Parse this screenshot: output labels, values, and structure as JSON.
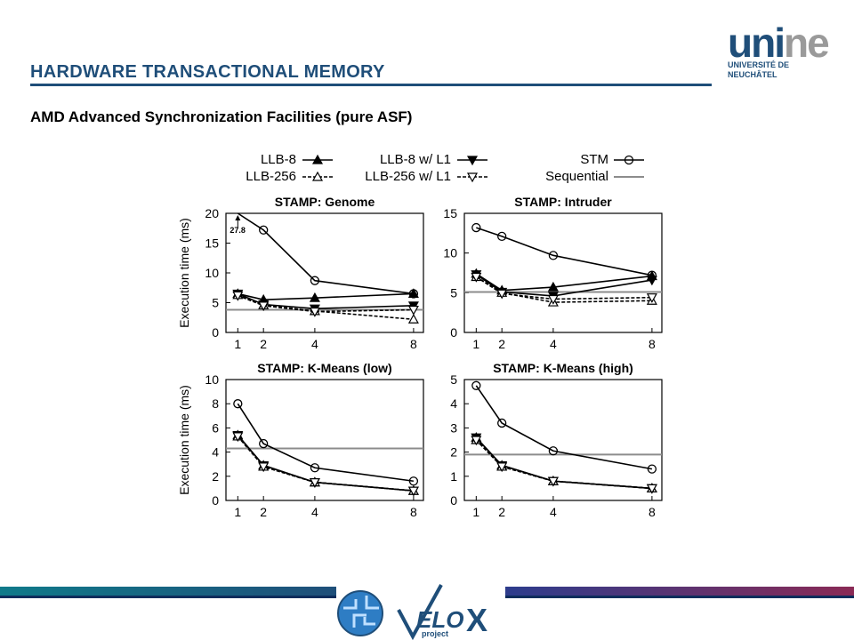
{
  "slide": {
    "title": "HARDWARE TRANSACTIONAL MEMORY",
    "subtitle": "AMD Advanced Synchronization Facilities (pure ASF)",
    "logo": {
      "word_dark": "uni",
      "word_light": "ne",
      "line1": "UNIVERSITÉ DE",
      "line2": "NEUCHÂTEL"
    },
    "footer_logo": {
      "word": "VELOX",
      "small": "project",
      "letter_v": "V",
      "letter_elo": "ELO",
      "letter_x": "X"
    }
  },
  "legend": [
    {
      "name": "LLB-8",
      "marker": "tri-up-filled",
      "dash": false
    },
    {
      "name": "LLB-256",
      "marker": "tri-up-open",
      "dash": true
    },
    {
      "name": "LLB-8 w/ L1",
      "marker": "tri-down-filled",
      "dash": false
    },
    {
      "name": "LLB-256 w/ L1",
      "marker": "tri-down-open",
      "dash": true
    },
    {
      "name": "STM",
      "marker": "circle-open",
      "dash": false
    },
    {
      "name": "Sequential",
      "marker": "none",
      "dash": false,
      "color": "#8c8c8c"
    }
  ],
  "chart_data": [
    {
      "type": "line",
      "title": "STAMP: Genome",
      "ylabel": "Execution time (ms)",
      "x": [
        1,
        2,
        4,
        8
      ],
      "xticks": [
        "1",
        "2",
        "4",
        "8"
      ],
      "ylim": [
        0,
        20
      ],
      "yticks": [
        "0",
        "5",
        "10",
        "15",
        "20"
      ],
      "annotation": "27.8",
      "sequential": 3.8,
      "series": [
        {
          "name": "LLB-8",
          "values": [
            6.5,
            5.5,
            5.8,
            6.5
          ]
        },
        {
          "name": "LLB-256",
          "values": [
            6.3,
            4.6,
            3.6,
            2.2
          ]
        },
        {
          "name": "LLB-8 w/ L1",
          "values": [
            6.5,
            4.7,
            4.0,
            4.5
          ]
        },
        {
          "name": "LLB-256 w/ L1",
          "values": [
            6.2,
            4.5,
            3.5,
            3.8
          ]
        },
        {
          "name": "STM",
          "values": [
            27.8,
            17.2,
            8.7,
            6.5
          ]
        }
      ]
    },
    {
      "type": "line",
      "title": "STAMP: Intruder",
      "ylabel": "",
      "x": [
        1,
        2,
        4,
        8
      ],
      "xticks": [
        "1",
        "2",
        "4",
        "8"
      ],
      "ylim": [
        0,
        15
      ],
      "yticks": [
        "0",
        "5",
        "10",
        "15"
      ],
      "sequential": 5.1,
      "series": [
        {
          "name": "LLB-8",
          "values": [
            7.4,
            5.3,
            5.7,
            7.1
          ]
        },
        {
          "name": "LLB-256",
          "values": [
            7.0,
            5.0,
            3.8,
            4.0
          ]
        },
        {
          "name": "LLB-8 w/ L1",
          "values": [
            7.3,
            5.1,
            4.6,
            6.6
          ]
        },
        {
          "name": "LLB-256 w/ L1",
          "values": [
            7.0,
            4.9,
            4.2,
            4.4
          ]
        },
        {
          "name": "STM",
          "values": [
            13.2,
            12.1,
            9.7,
            7.2
          ]
        }
      ]
    },
    {
      "type": "line",
      "title": "STAMP: K-Means (low)",
      "ylabel": "Execution time (ms)",
      "x": [
        1,
        2,
        4,
        8
      ],
      "xticks": [
        "1",
        "2",
        "4",
        "8"
      ],
      "ylim": [
        0,
        10
      ],
      "yticks": [
        "0",
        "2",
        "4",
        "6",
        "8",
        "10"
      ],
      "sequential": 4.3,
      "series": [
        {
          "name": "LLB-8",
          "values": [
            5.4,
            2.9,
            1.5,
            0.8
          ]
        },
        {
          "name": "LLB-256",
          "values": [
            5.3,
            2.8,
            1.5,
            0.8
          ]
        },
        {
          "name": "LLB-8 w/ L1",
          "values": [
            5.4,
            2.9,
            1.5,
            0.8
          ]
        },
        {
          "name": "LLB-256 w/ L1",
          "values": [
            5.3,
            2.8,
            1.5,
            0.8
          ]
        },
        {
          "name": "STM",
          "values": [
            8.0,
            4.7,
            2.7,
            1.6
          ]
        }
      ]
    },
    {
      "type": "line",
      "title": "STAMP: K-Means (high)",
      "ylabel": "",
      "x": [
        1,
        2,
        4,
        8
      ],
      "xticks": [
        "1",
        "2",
        "4",
        "8"
      ],
      "ylim": [
        0,
        5
      ],
      "yticks": [
        "0",
        "1",
        "2",
        "3",
        "4",
        "5"
      ],
      "sequential": 1.9,
      "series": [
        {
          "name": "LLB-8",
          "values": [
            2.6,
            1.45,
            0.8,
            0.5
          ]
        },
        {
          "name": "LLB-256",
          "values": [
            2.5,
            1.4,
            0.8,
            0.5
          ]
        },
        {
          "name": "LLB-8 w/ L1",
          "values": [
            2.6,
            1.45,
            0.8,
            0.5
          ]
        },
        {
          "name": "LLB-256 w/ L1",
          "values": [
            2.5,
            1.4,
            0.8,
            0.5
          ]
        },
        {
          "name": "STM",
          "values": [
            4.75,
            3.2,
            2.05,
            1.3
          ]
        }
      ]
    }
  ]
}
